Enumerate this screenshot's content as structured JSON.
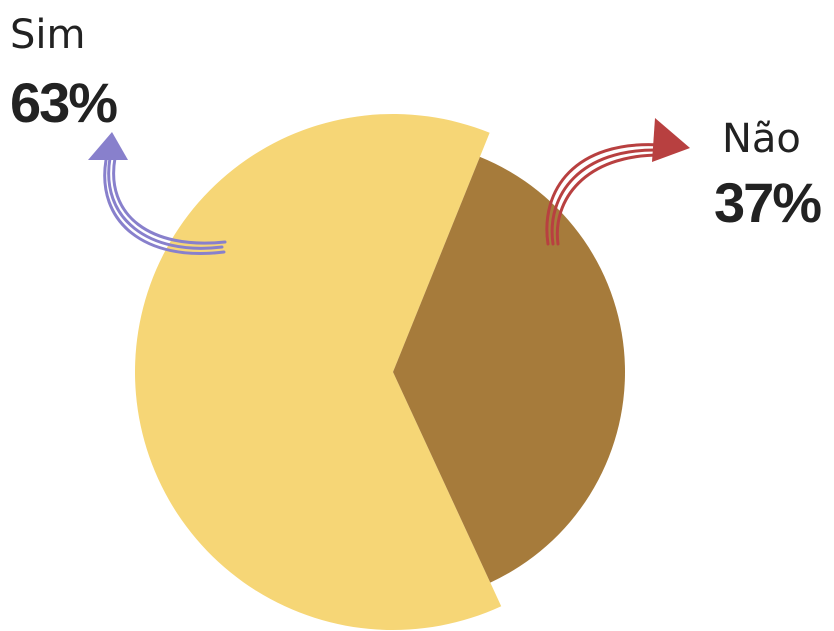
{
  "chart_data": {
    "type": "pie",
    "categories": [
      "Sim",
      "Não"
    ],
    "values": [
      63,
      37
    ],
    "value_labels": [
      "63%",
      "37%"
    ],
    "colors": [
      "#f6d676",
      "#a67b3b"
    ]
  }
}
